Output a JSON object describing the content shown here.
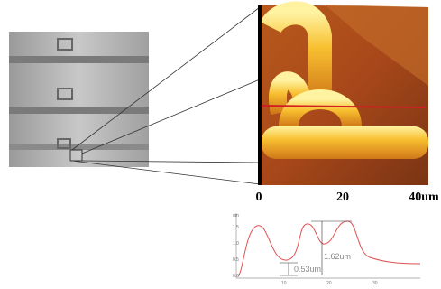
{
  "afm_axis": {
    "labels": [
      "0",
      "20",
      "40um"
    ]
  },
  "profile": {
    "unit": "um",
    "y_labels": [
      "1.5",
      "1.0",
      "0.5",
      "0.0"
    ],
    "x_labels": [
      "10",
      "20",
      "30"
    ],
    "annotations": {
      "large_step": "1.62um",
      "small_step": "0.53um"
    }
  }
}
